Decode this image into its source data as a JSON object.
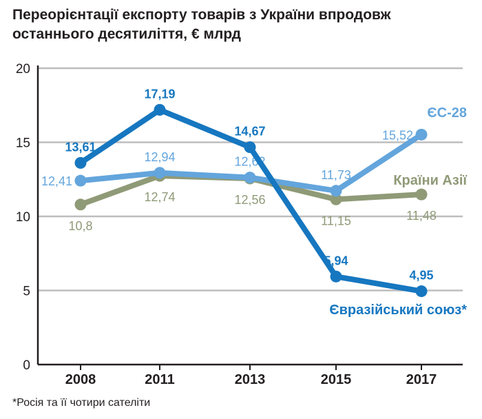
{
  "title_lines": [
    "Переорієнтації експорту товарів з України впродовж",
    "останнього десятиліття, € млрд"
  ],
  "footnote": "*Росія та її чотири сателіти",
  "chart_data": {
    "type": "line",
    "title": "Переорієнтації експорту товарів з України впродовж останнього десятиліття, € млрд",
    "categories": [
      "2008",
      "2011",
      "2013",
      "2015",
      "2017"
    ],
    "ylim": [
      0,
      20
    ],
    "yticks": [
      0,
      5,
      10,
      15,
      20
    ],
    "ytick_labels": [
      "0",
      "5",
      "10",
      "15",
      "20"
    ],
    "grid": true,
    "series": [
      {
        "name": "Країни Азії",
        "color": "#8f9a77",
        "values": [
          10.8,
          12.74,
          12.56,
          11.15,
          11.48
        ],
        "labels": [
          "10,8",
          "12,74",
          "12,56",
          "11,15",
          "11,48"
        ],
        "label_pos": [
          "below",
          "below",
          "below",
          "below",
          "below"
        ]
      },
      {
        "name": "ЄС-28",
        "color": "#63a5dc",
        "values": [
          12.41,
          12.94,
          12.62,
          11.73,
          15.52
        ],
        "labels": [
          "12,41",
          "12,94",
          "12,62",
          "11,73",
          "15,52"
        ],
        "label_pos": [
          "left",
          "above",
          "above",
          "above",
          "left"
        ]
      },
      {
        "name": "Євразійський союз*",
        "color": "#1677c0",
        "values": [
          13.61,
          17.19,
          14.67,
          5.94,
          4.95
        ],
        "labels": [
          "13,61",
          "17,19",
          "14,67",
          "5,94",
          "4,95"
        ],
        "label_pos": [
          "above",
          "above",
          "above",
          "above",
          "above"
        ]
      }
    ]
  }
}
